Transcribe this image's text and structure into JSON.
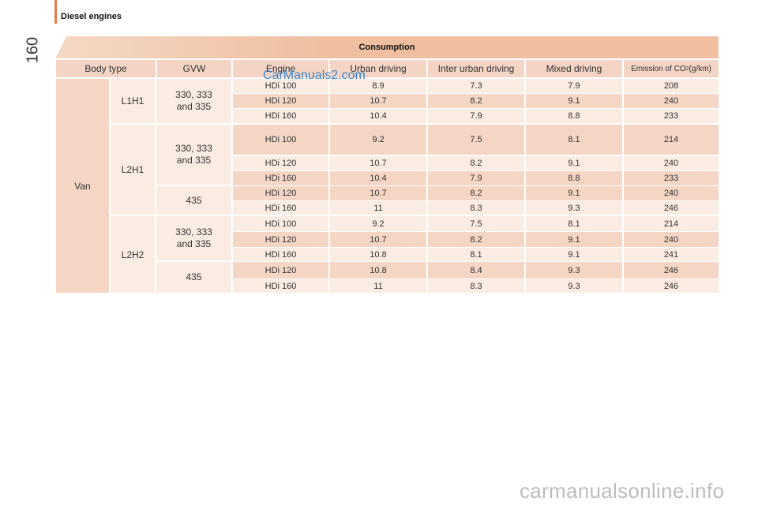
{
  "section_title": "Diesel engines",
  "page_number": "160",
  "table_title": "Consumption",
  "headers": {
    "body_type": "Body type",
    "gvw": "GVW",
    "engine": "Engine",
    "urban": "Urban driving",
    "inter_urban": "Inter urban driving",
    "mixed": "Mixed driving",
    "emission_pre": "Emission of CO",
    "emission_sub": "2",
    "emission_post": " (g/km)"
  },
  "body_type": "Van",
  "groups": [
    "L1H1",
    "L2H1",
    "L2H2"
  ],
  "gvw_labels": [
    "330, 333\nand 335",
    "330, 333\nand 335",
    "435",
    "330, 333\nand 335",
    "435"
  ],
  "rows": [
    [
      "HDi 100",
      "8.9",
      "7.3",
      "7.9",
      "208"
    ],
    [
      "HDi 120",
      "10.7",
      "8.2",
      "9.1",
      "240"
    ],
    [
      "HDi 160",
      "10.4",
      "7.9",
      "8.8",
      "233"
    ],
    [
      "HDi 100",
      "9.2",
      "7.5",
      "8.1",
      "214"
    ],
    [
      "HDi 120",
      "10.7",
      "8.2",
      "9.1",
      "240"
    ],
    [
      "HDi 160",
      "10.4",
      "7.9",
      "8.8",
      "233"
    ],
    [
      "HDi 120",
      "10.7",
      "8.2",
      "9.1",
      "240"
    ],
    [
      "HDi 160",
      "11",
      "8.3",
      "9.3",
      "246"
    ],
    [
      "HDi 100",
      "9.2",
      "7.5",
      "8.1",
      "214"
    ],
    [
      "HDi 120",
      "10.7",
      "8.2",
      "9.1",
      "240"
    ],
    [
      "HDi 160",
      "10.8",
      "8.1",
      "9.1",
      "241"
    ],
    [
      "HDi 120",
      "10.8",
      "8.4",
      "9.3",
      "246"
    ],
    [
      "HDi 160",
      "11",
      "8.3",
      "9.3",
      "246"
    ]
  ],
  "watermark": "CarManuals2.com",
  "bottom_watermark": "carmanualsonline.info"
}
